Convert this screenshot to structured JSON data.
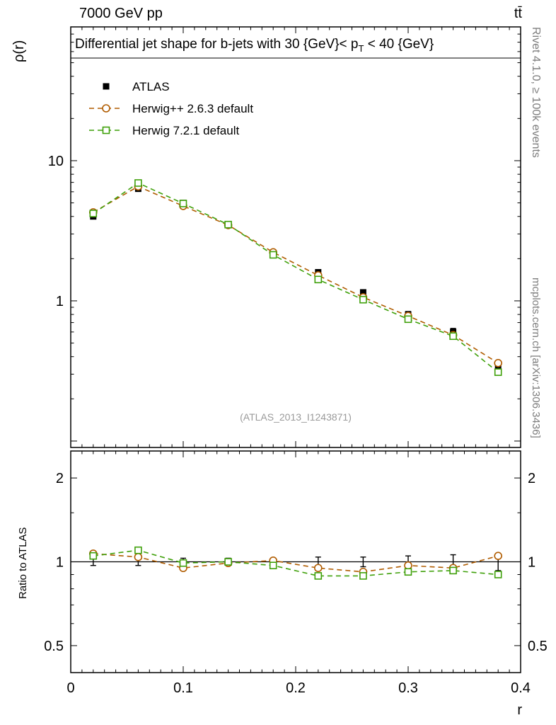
{
  "header": {
    "left": "7000 GeV pp",
    "right": "tt̄"
  },
  "axis_labels": {
    "y_main": "ρ(r)",
    "y_ratio": "Ratio to ATLAS",
    "x": "r"
  },
  "title": {
    "pre": "Differential jet shape for b-jets with 30 {GeV}< p",
    "sub": "T",
    "post": " < 40 {GeV}"
  },
  "watermark": "(ATLAS_2013_I1243871)",
  "side_labels": {
    "top": "Rivet 4.1.0, ≥ 100k events",
    "bottom": "mcplots.cern.ch [arXiv:1306.3436]"
  },
  "chart_data": {
    "type": "line",
    "title": "Differential jet shape for b-jets with 30 {GeV}< p_T < 40 {GeV}",
    "xlabel": "r",
    "ylabel": "ρ(r)",
    "ratio_ylabel": "Ratio to ATLAS",
    "legend_position": "top-left",
    "x": [
      0.02,
      0.06,
      0.1,
      0.14,
      0.18,
      0.22,
      0.26,
      0.3,
      0.34,
      0.38
    ],
    "series": [
      {
        "name": "ATLAS",
        "type": "data",
        "marker": "square-filled",
        "color": "#000000",
        "values": [
          4.0,
          6.3,
          5.0,
          3.5,
          2.2,
          1.6,
          1.15,
          0.8,
          0.6,
          0.34
        ],
        "ratio": [
          1,
          1,
          1,
          1,
          1,
          1,
          1,
          1,
          1,
          1
        ],
        "rel_err": [
          0.03,
          0.03,
          0.03,
          0.03,
          0.03,
          0.04,
          0.04,
          0.05,
          0.06,
          0.07
        ]
      },
      {
        "name": "Herwig++ 2.6.3 default",
        "type": "mc",
        "marker": "circle-open",
        "color": "#b05c00",
        "line": "dashed",
        "values": [
          4.28,
          6.55,
          4.75,
          3.47,
          2.22,
          1.52,
          1.06,
          0.78,
          0.57,
          0.36
        ],
        "ratio": [
          1.07,
          1.04,
          0.95,
          0.99,
          1.01,
          0.95,
          0.92,
          0.97,
          0.95,
          1.05
        ]
      },
      {
        "name": "Herwig 7.2.1 default",
        "type": "mc",
        "marker": "square-open",
        "color": "#3fa00a",
        "line": "dashed",
        "values": [
          4.2,
          6.93,
          4.95,
          3.5,
          2.13,
          1.42,
          1.02,
          0.74,
          0.56,
          0.31
        ],
        "ratio": [
          1.05,
          1.1,
          0.99,
          1.0,
          0.97,
          0.89,
          0.89,
          0.92,
          0.93,
          0.9
        ]
      }
    ],
    "x_axis": {
      "lim": [
        0,
        0.4
      ],
      "major": [
        0,
        0.1,
        0.2,
        0.3,
        0.4
      ],
      "labels": [
        "0",
        "0.1",
        "0.2",
        "0.3",
        "0.4"
      ],
      "minor_step": 0.01
    },
    "main_axis": {
      "scale": "log",
      "lim": [
        0.09,
        90
      ],
      "labeled": [
        1,
        10
      ],
      "labels": [
        "1",
        "10"
      ]
    },
    "ratio_axis": {
      "scale": "log",
      "lim": [
        0.4,
        2.5
      ],
      "labeled": [
        0.5,
        1,
        2
      ],
      "labels": [
        "0.5",
        "1",
        "2"
      ],
      "minor": [
        0.6,
        0.7,
        0.8,
        0.9,
        1.5
      ]
    },
    "grid": false
  }
}
